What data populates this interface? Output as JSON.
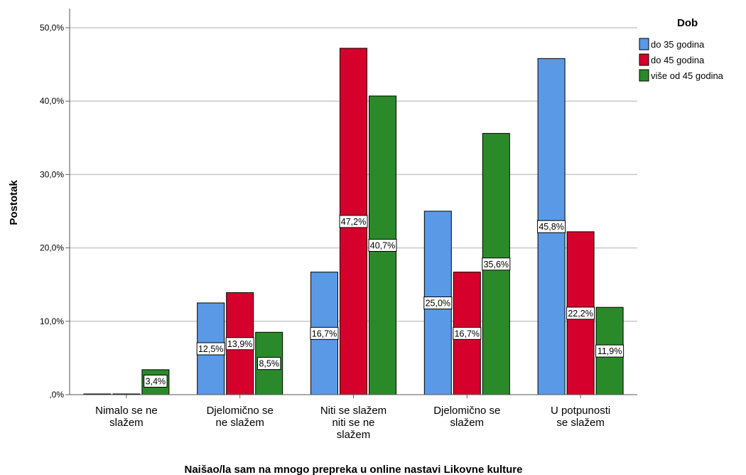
{
  "chart_data": {
    "type": "bar",
    "title": "",
    "xlabel": "Naišao/la sam na mnogo prepreka u online nastavi Likovne kulture",
    "ylabel": "Postotak",
    "ylim": [
      0,
      50
    ],
    "yticks": [
      ",0%",
      "10,0%",
      "20,0%",
      "30,0%",
      "40,0%",
      "50,0%"
    ],
    "grid": true,
    "legend_title": "Dob",
    "legend_position": "top-right",
    "categories": [
      [
        "Nimalo se ne",
        "slažem"
      ],
      [
        "Djelomično se",
        "ne slažem"
      ],
      [
        "Niti se slažem",
        "niti se ne",
        "slažem"
      ],
      [
        "Djelomično se",
        "slažem"
      ],
      [
        "U potpunosti",
        "se slažem"
      ]
    ],
    "series": [
      {
        "name": "do 35 godina",
        "color": "#5a99e6",
        "values": [
          0,
          12.5,
          16.7,
          25.0,
          45.8
        ],
        "labels": [
          "",
          "12,5%",
          "16,7%",
          "25,0%",
          "45,8%"
        ]
      },
      {
        "name": "do 45 godina",
        "color": "#d5002b",
        "values": [
          0,
          13.9,
          47.2,
          16.7,
          22.2
        ],
        "labels": [
          "",
          "13,9%",
          "47,2%",
          "16,7%",
          "22,2%"
        ]
      },
      {
        "name": "više od 45 godina",
        "color": "#2a8a2a",
        "values": [
          3.4,
          8.5,
          40.7,
          35.6,
          11.9
        ],
        "labels": [
          "3,4%",
          "8,5%",
          "40,7%",
          "35,6%",
          "11,9%"
        ]
      }
    ]
  }
}
